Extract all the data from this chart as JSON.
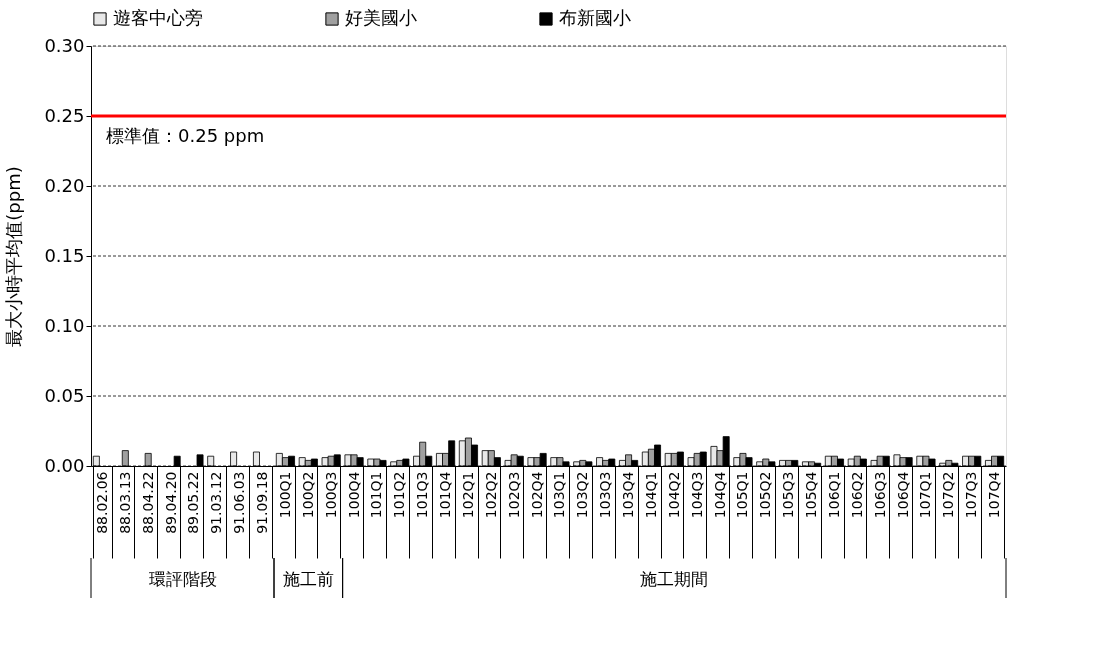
{
  "chart_data": {
    "type": "bar",
    "ylabel": "最大小時平均值(ppm)",
    "categories": [
      "88.02.06",
      "88.03.13",
      "88.04.22",
      "89.04.20",
      "89.05.22",
      "91.03.12",
      "91.06.03",
      "91.09.18",
      "100Q1",
      "100Q2",
      "100Q3",
      "100Q4",
      "101Q1",
      "101Q2",
      "101Q3",
      "101Q4",
      "102Q1",
      "102Q2",
      "102Q3",
      "102Q4",
      "103Q1",
      "103Q2",
      "103Q3",
      "103Q4",
      "104Q1",
      "104Q2",
      "104Q3",
      "104Q4",
      "105Q1",
      "105Q2",
      "105Q3",
      "105Q4",
      "106Q1",
      "106Q2",
      "106Q3",
      "106Q4",
      "107Q1",
      "107Q2",
      "107Q3",
      "107Q4"
    ],
    "series": [
      {
        "name": "遊客中心旁",
        "color": "#e8e8e8",
        "values": [
          0.007,
          null,
          null,
          null,
          null,
          0.007,
          0.01,
          0.01,
          0.009,
          0.006,
          0.006,
          0.008,
          0.005,
          0.003,
          0.007,
          0.009,
          0.018,
          0.011,
          0.004,
          0.006,
          0.006,
          0.003,
          0.006,
          0.004,
          0.01,
          0.009,
          0.006,
          0.014,
          0.006,
          0.003,
          0.004,
          0.003,
          0.007,
          0.005,
          0.004,
          0.008,
          0.007,
          0.002,
          0.007,
          0.004
        ]
      },
      {
        "name": "好美國小",
        "color": "#a0a0a0",
        "values": [
          null,
          0.011,
          0.009,
          null,
          null,
          null,
          null,
          null,
          0.006,
          0.004,
          0.007,
          0.008,
          0.005,
          0.004,
          0.017,
          0.009,
          0.02,
          0.011,
          0.008,
          0.006,
          0.006,
          0.004,
          0.004,
          0.008,
          0.012,
          0.009,
          0.009,
          0.011,
          0.009,
          0.005,
          0.004,
          0.003,
          0.007,
          0.007,
          0.007,
          0.006,
          0.007,
          0.004,
          0.007,
          0.007
        ]
      },
      {
        "name": "布新國小",
        "color": "#000000",
        "values": [
          null,
          null,
          null,
          0.007,
          0.008,
          null,
          null,
          null,
          0.007,
          0.005,
          0.008,
          0.006,
          0.004,
          0.005,
          0.007,
          0.018,
          0.015,
          0.006,
          0.007,
          0.009,
          0.003,
          0.003,
          0.005,
          0.004,
          0.015,
          0.01,
          0.01,
          0.021,
          0.006,
          0.003,
          0.004,
          0.002,
          0.005,
          0.005,
          0.007,
          0.006,
          0.005,
          0.002,
          0.007,
          0.007
        ]
      }
    ],
    "ylim": [
      0,
      0.3
    ],
    "yticks": [
      {
        "value": 0,
        "label": "0.00"
      },
      {
        "value": 0.05,
        "label": "0.05"
      },
      {
        "value": 0.1,
        "label": "0.10"
      },
      {
        "value": 0.15,
        "label": "0.15"
      },
      {
        "value": 0.2,
        "label": "0.20"
      },
      {
        "value": 0.25,
        "label": "0.25"
      },
      {
        "value": 0.3,
        "label": "0.30"
      }
    ],
    "grid": "y",
    "legend": "top",
    "ref_lines": [
      {
        "axis": "y",
        "value": 0.25,
        "label": "標準值：0.25 ppm",
        "color": "#ff0000"
      }
    ],
    "annotations": [
      "環評階段",
      "施工前",
      "施工期間"
    ]
  }
}
